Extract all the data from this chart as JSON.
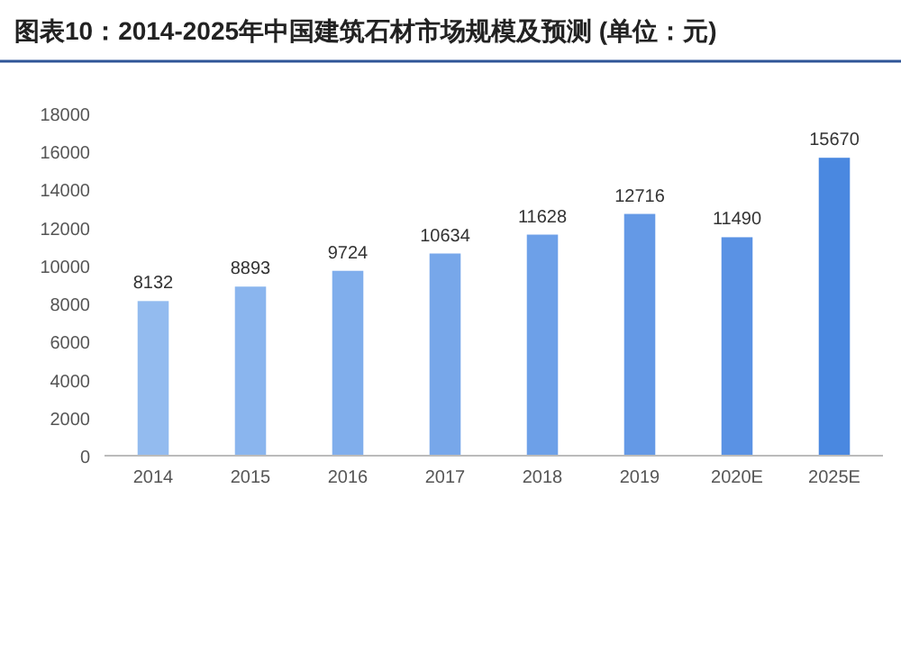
{
  "chart_data": {
    "type": "bar",
    "title": "图表10：2014-2025年中国建筑石材市场规模及预测 (单位：元)",
    "categories": [
      "2014",
      "2015",
      "2016",
      "2017",
      "2018",
      "2019",
      "2020E",
      "2025E"
    ],
    "values": [
      8132,
      8893,
      9724,
      10634,
      11628,
      12716,
      11490,
      15670
    ],
    "colors": [
      "#93bbef",
      "#8ab5ee",
      "#80aeec",
      "#77a7ea",
      "#6da0e8",
      "#6499e6",
      "#5a92e4",
      "#4a88e0"
    ],
    "ylim": [
      0,
      18000
    ],
    "yticks": [
      0,
      2000,
      4000,
      6000,
      8000,
      10000,
      12000,
      14000,
      16000,
      18000
    ],
    "data_labels": true
  }
}
